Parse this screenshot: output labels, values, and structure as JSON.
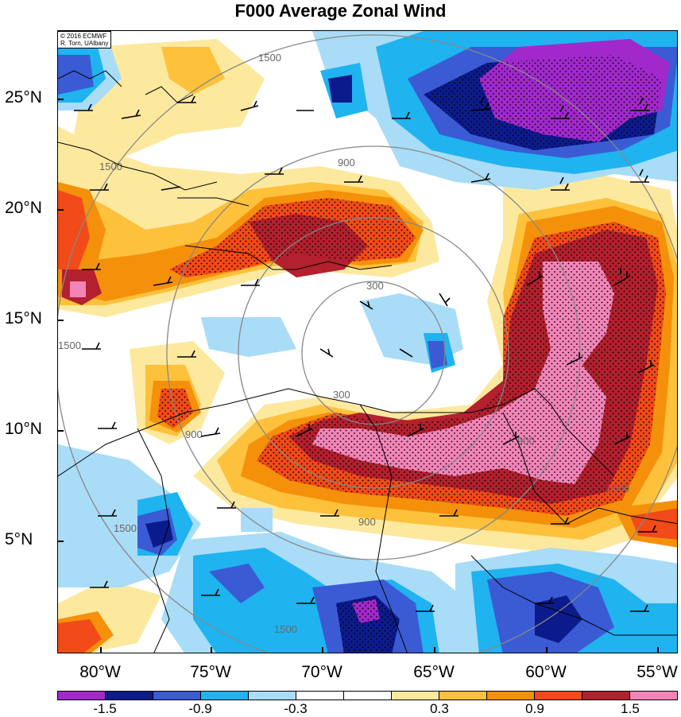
{
  "title": "F000 Average Zonal Wind",
  "credit": {
    "line1": "© 2016 ECMWF",
    "line2": "R. Torn, UAlbany"
  },
  "colors": {
    "purple": "#a129cc",
    "navy": "#0c1b8c",
    "blue": "#3a5bd4",
    "cyan": "#1fb3f0",
    "lightblue": "#a9dcf7",
    "white": "#ffffff",
    "lightyellow": "#fde99e",
    "yellow": "#fec13b",
    "orange": "#f5900b",
    "redorange": "#f24a18",
    "darkred": "#b3202e",
    "pink": "#f284b8"
  },
  "map": {
    "latitude_labels": [
      "25°N",
      "20°N",
      "15°N",
      "10°N",
      "5°N"
    ],
    "longitude_labels": [
      "80°W",
      "75°W",
      "70°W",
      "65°W",
      "60°W",
      "55°W"
    ],
    "range_ring_labels": [
      "300",
      "300",
      "900",
      "900",
      "900",
      "900",
      "1500",
      "1500",
      "1500",
      "1500",
      "1500",
      "1500"
    ]
  },
  "colorbar": {
    "labels": [
      "-1.5",
      "-0.9",
      "-0.3",
      "0.3",
      "0.9",
      "1.5"
    ],
    "bin_colors": [
      "#a129cc",
      "#0c1b8c",
      "#3a5bd4",
      "#1fb3f0",
      "#a9dcf7",
      "#ffffff",
      "#ffffff",
      "#fde99e",
      "#fec13b",
      "#f5900b",
      "#f24a18",
      "#b3202e",
      "#f284b8"
    ]
  }
}
